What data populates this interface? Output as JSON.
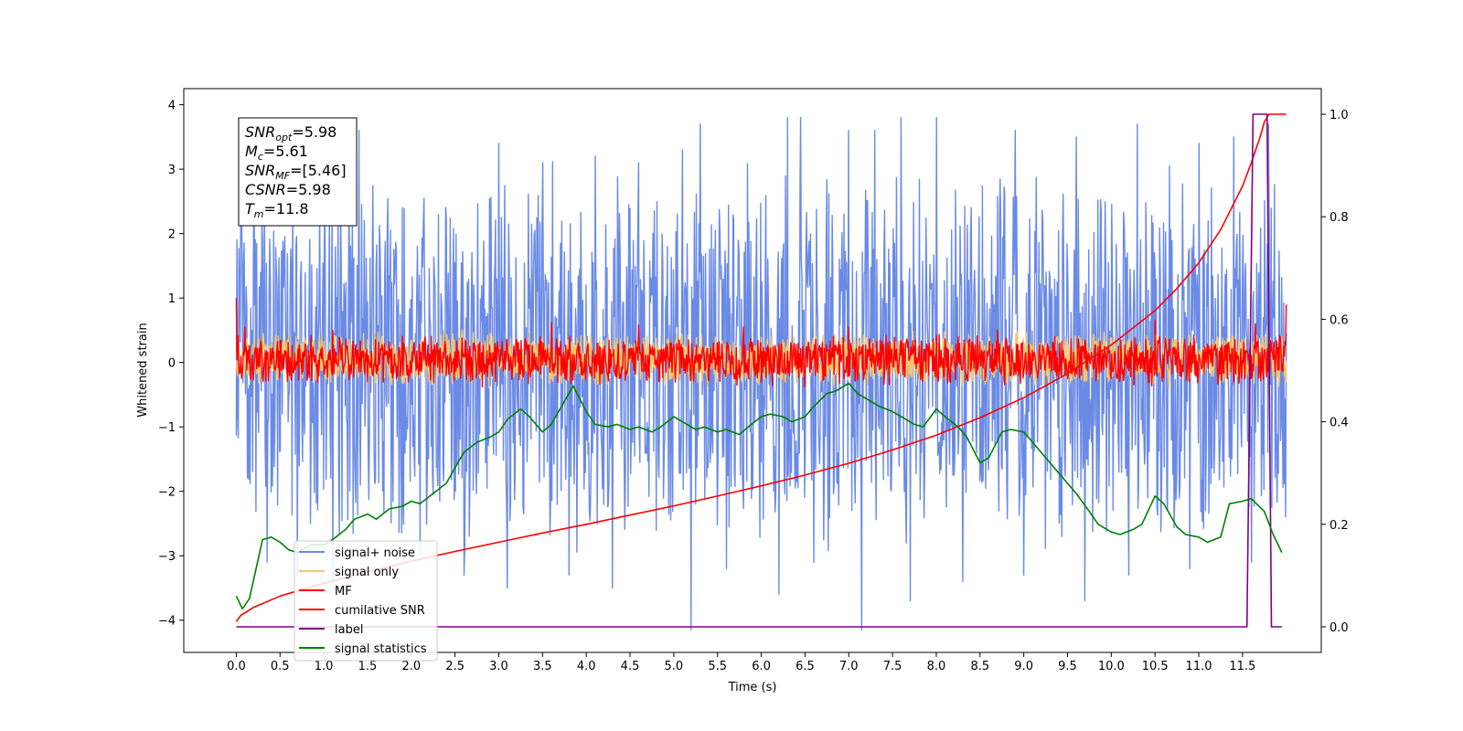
{
  "chart_data": {
    "type": "line",
    "title": "",
    "xlabel": "Time (s)",
    "ylabel_left": "Whitened strain",
    "ylabel_right": "",
    "xlim": [
      -0.6,
      12.4
    ],
    "ylim_left": [
      -4.5,
      4.25
    ],
    "ylim_right": [
      -0.05,
      1.05
    ],
    "x_ticks": [
      0.0,
      0.5,
      1.0,
      1.5,
      2.0,
      2.5,
      3.0,
      3.5,
      4.0,
      4.5,
      5.0,
      5.5,
      6.0,
      6.5,
      7.0,
      7.5,
      8.0,
      8.5,
      9.0,
      9.5,
      10.0,
      10.5,
      11.0,
      11.5
    ],
    "x_tick_labels": [
      "0.0",
      "0.5",
      "1.0",
      "1.5",
      "2.0",
      "2.5",
      "3.0",
      "3.5",
      "4.0",
      "4.5",
      "5.0",
      "5.5",
      "6.0",
      "6.5",
      "7.0",
      "7.5",
      "8.0",
      "8.5",
      "9.0",
      "9.5",
      "10.0",
      "10.5",
      "11.0",
      "11.5"
    ],
    "y_left_ticks": [
      -4,
      -3,
      -2,
      -1,
      0,
      1,
      2,
      3,
      4
    ],
    "y_left_tick_labels": [
      "−4",
      "−3",
      "−2",
      "−1",
      "0",
      "1",
      "2",
      "3",
      "4"
    ],
    "y_right_ticks": [
      0.0,
      0.2,
      0.4,
      0.6,
      0.8,
      1.0
    ],
    "y_right_tick_labels": [
      "0.0",
      "0.2",
      "0.4",
      "0.6",
      "0.8",
      "1.0"
    ],
    "grid": false,
    "legend_position": "lower-left",
    "annotation": [
      {
        "base": "SNR",
        "sub": "opt",
        "value": "=5.98"
      },
      {
        "base": "M",
        "sub": "c",
        "value": "=5.61"
      },
      {
        "base": "SNR",
        "sub": "MF",
        "value": "=[5.46]"
      },
      {
        "base": "CSNR",
        "sub": "",
        "value": "=5.98"
      },
      {
        "base": "T",
        "sub": "m",
        "value": "=11.8"
      }
    ],
    "series": [
      {
        "name": "signal+ noise",
        "axis": "left",
        "color": "#6a8ae6",
        "kind": "noise",
        "x_range": [
          0.0,
          12.0
        ],
        "center": 0.0,
        "band": [
          -2.3,
          2.4
        ],
        "spikes_up": [
          [
            0.05,
            2.5
          ],
          [
            0.2,
            3.2
          ],
          [
            1.4,
            3.6
          ],
          [
            2.6,
            3.3
          ],
          [
            3.0,
            3.4
          ],
          [
            3.5,
            3.1
          ],
          [
            4.1,
            3.2
          ],
          [
            4.6,
            3.1
          ],
          [
            5.1,
            3.3
          ],
          [
            5.3,
            3.7
          ],
          [
            6.3,
            3.8
          ],
          [
            6.45,
            3.8
          ],
          [
            7.0,
            3.6
          ],
          [
            7.3,
            3.6
          ],
          [
            7.6,
            3.8
          ],
          [
            8.0,
            3.8
          ],
          [
            8.9,
            3.6
          ],
          [
            9.6,
            3.5
          ],
          [
            10.3,
            3.7
          ],
          [
            11.0,
            3.4
          ],
          [
            11.4,
            3.5
          ],
          [
            11.8,
            3.7
          ]
        ],
        "spikes_down": [
          [
            0.35,
            -3.1
          ],
          [
            0.7,
            -3.3
          ],
          [
            1.1,
            -3.4
          ],
          [
            2.1,
            -3.0
          ],
          [
            2.6,
            -3.3
          ],
          [
            3.1,
            -3.5
          ],
          [
            3.8,
            -3.3
          ],
          [
            4.3,
            -3.5
          ],
          [
            5.2,
            -4.15
          ],
          [
            5.6,
            -3.2
          ],
          [
            6.2,
            -3.6
          ],
          [
            6.6,
            -3.1
          ],
          [
            7.15,
            -4.15
          ],
          [
            7.7,
            -3.7
          ],
          [
            8.3,
            -3.4
          ],
          [
            9.0,
            -3.3
          ],
          [
            9.7,
            -3.7
          ],
          [
            10.2,
            -3.3
          ],
          [
            10.9,
            -3.2
          ],
          [
            11.6,
            -3.1
          ]
        ]
      },
      {
        "name": "signal only",
        "axis": "left",
        "color": "#f5c86a",
        "kind": "noise",
        "x_range": [
          0.0,
          12.0
        ],
        "center": 0.0,
        "band": [
          -0.3,
          0.4
        ]
      },
      {
        "name": "MF",
        "axis": "left",
        "color": "#ff0000",
        "kind": "noise",
        "x_range": [
          0.0,
          12.0
        ],
        "center": 0.0,
        "band": [
          -0.28,
          0.35
        ],
        "start_value": 1.0,
        "spikes_up": [
          [
            0.1,
            0.55
          ],
          [
            1.1,
            0.5
          ],
          [
            3.6,
            0.62
          ],
          [
            4.6,
            0.58
          ],
          [
            5.8,
            0.55
          ],
          [
            7.0,
            0.55
          ],
          [
            8.7,
            0.5
          ],
          [
            10.5,
            0.65
          ],
          [
            11.65,
            0.6
          ],
          [
            12.0,
            0.9
          ]
        ],
        "spikes_down": [
          [
            1.5,
            -0.3
          ],
          [
            6.0,
            -0.3
          ],
          [
            11.4,
            -0.3
          ]
        ]
      },
      {
        "name": "cumilative SNR",
        "axis": "right",
        "color": "#ff0000",
        "kind": "line",
        "x": [
          0.0,
          0.05,
          0.2,
          0.5,
          1.0,
          1.5,
          2.0,
          2.5,
          3.0,
          3.5,
          4.0,
          4.5,
          5.0,
          5.5,
          6.0,
          6.5,
          7.0,
          7.5,
          8.0,
          8.5,
          9.0,
          9.5,
          10.0,
          10.5,
          10.75,
          11.0,
          11.25,
          11.5,
          11.6,
          11.7,
          11.75,
          11.8,
          12.0
        ],
        "y": [
          0.01,
          0.022,
          0.038,
          0.06,
          0.085,
          0.107,
          0.128,
          0.147,
          0.165,
          0.183,
          0.2,
          0.218,
          0.236,
          0.255,
          0.275,
          0.296,
          0.319,
          0.345,
          0.374,
          0.408,
          0.447,
          0.494,
          0.55,
          0.617,
          0.66,
          0.71,
          0.775,
          0.86,
          0.905,
          0.955,
          0.985,
          1.0,
          1.0
        ]
      },
      {
        "name": "label",
        "axis": "right",
        "color": "#800080",
        "kind": "line",
        "x": [
          0.0,
          11.55,
          11.62,
          11.78,
          11.83,
          11.95
        ],
        "y": [
          0.0,
          0.0,
          1.0,
          1.0,
          0.0,
          0.0
        ]
      },
      {
        "name": "signal statistics",
        "axis": "right",
        "color": "#008000",
        "kind": "line",
        "x": [
          0.0,
          0.07,
          0.15,
          0.3,
          0.4,
          0.5,
          0.6,
          0.7,
          0.85,
          1.0,
          1.1,
          1.25,
          1.35,
          1.5,
          1.6,
          1.75,
          1.9,
          2.0,
          2.1,
          2.25,
          2.4,
          2.5,
          2.6,
          2.75,
          2.9,
          3.0,
          3.1,
          3.25,
          3.35,
          3.5,
          3.6,
          3.75,
          3.85,
          4.0,
          4.1,
          4.25,
          4.35,
          4.5,
          4.6,
          4.75,
          4.85,
          5.0,
          5.1,
          5.25,
          5.35,
          5.5,
          5.6,
          5.75,
          5.85,
          6.0,
          6.1,
          6.25,
          6.35,
          6.5,
          6.6,
          6.75,
          6.85,
          7.0,
          7.1,
          7.25,
          7.35,
          7.5,
          7.6,
          7.75,
          7.85,
          8.0,
          8.1,
          8.25,
          8.35,
          8.5,
          8.6,
          8.75,
          8.85,
          9.0,
          9.1,
          9.25,
          9.4,
          9.5,
          9.6,
          9.75,
          9.85,
          10.0,
          10.1,
          10.25,
          10.35,
          10.5,
          10.6,
          10.75,
          10.85,
          11.0,
          11.1,
          11.25,
          11.35,
          11.5,
          11.6,
          11.75,
          11.85,
          11.95
        ],
        "y": [
          0.06,
          0.035,
          0.055,
          0.17,
          0.175,
          0.165,
          0.15,
          0.145,
          0.16,
          0.16,
          0.17,
          0.19,
          0.21,
          0.22,
          0.21,
          0.23,
          0.235,
          0.245,
          0.24,
          0.26,
          0.28,
          0.31,
          0.34,
          0.36,
          0.37,
          0.38,
          0.405,
          0.425,
          0.41,
          0.38,
          0.395,
          0.44,
          0.47,
          0.42,
          0.395,
          0.39,
          0.395,
          0.385,
          0.39,
          0.38,
          0.39,
          0.41,
          0.4,
          0.385,
          0.39,
          0.38,
          0.385,
          0.375,
          0.39,
          0.41,
          0.415,
          0.41,
          0.4,
          0.41,
          0.43,
          0.455,
          0.46,
          0.475,
          0.455,
          0.44,
          0.43,
          0.42,
          0.41,
          0.395,
          0.39,
          0.425,
          0.41,
          0.39,
          0.37,
          0.32,
          0.33,
          0.38,
          0.385,
          0.38,
          0.36,
          0.33,
          0.3,
          0.28,
          0.26,
          0.225,
          0.2,
          0.185,
          0.18,
          0.19,
          0.2,
          0.255,
          0.24,
          0.195,
          0.18,
          0.175,
          0.165,
          0.175,
          0.24,
          0.245,
          0.25,
          0.225,
          0.18,
          0.145
        ]
      }
    ]
  }
}
